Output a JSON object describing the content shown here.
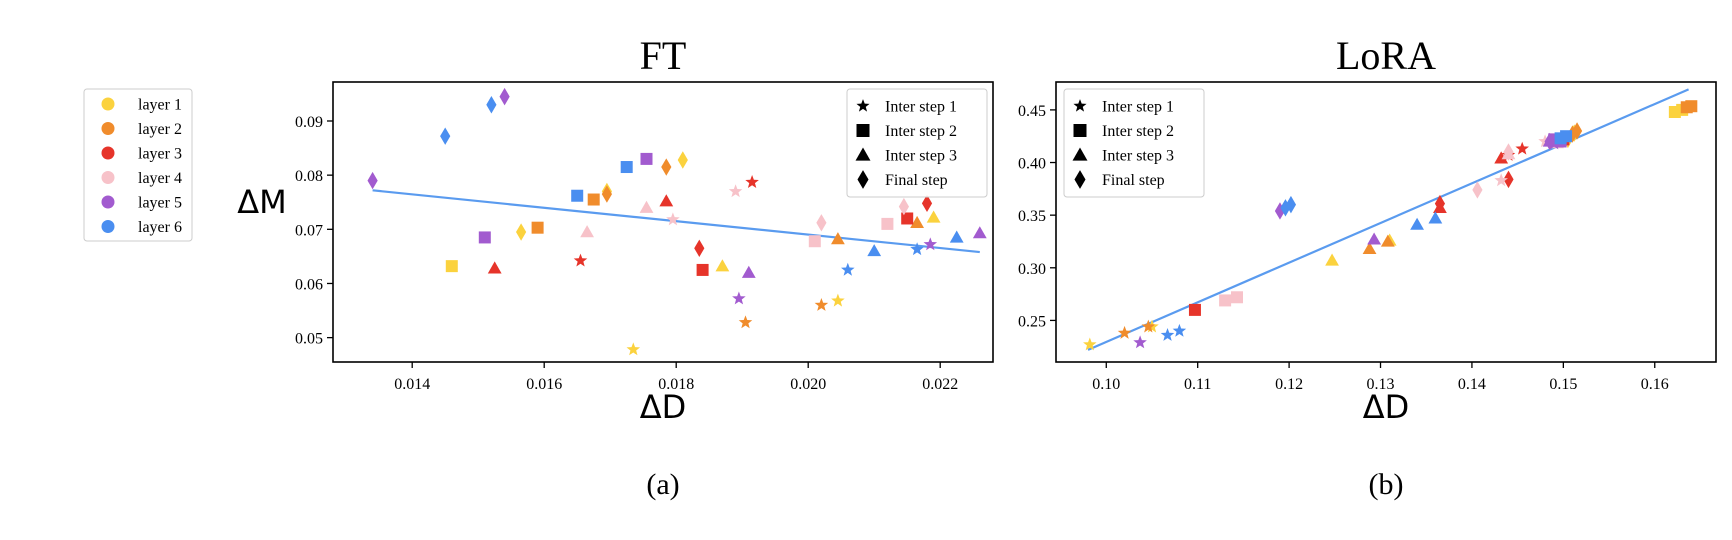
{
  "colors": {
    "layer 1": "#fbd23e",
    "layer 2": "#f08c2c",
    "layer 3": "#e6342a",
    "layer 4": "#f7c2c9",
    "layer 5": "#a25bcf",
    "layer 6": "#4a8ef0",
    "fit_line": "#5a9bef"
  },
  "layer_legend": [
    "layer 1",
    "layer 2",
    "layer 3",
    "layer 4",
    "layer 5",
    "layer 6"
  ],
  "marker_legend": [
    {
      "label": "Inter step 1",
      "marker": "star"
    },
    {
      "label": "Inter step 2",
      "marker": "square"
    },
    {
      "label": "Inter step 3",
      "marker": "triangle"
    },
    {
      "label": "Final step",
      "marker": "diamond"
    }
  ],
  "chart_data": [
    {
      "type": "scatter",
      "panel_label": "(a)",
      "title": "FT",
      "xlabel": "ΔD",
      "ylabel": "ΔM",
      "xlim": [
        0.0128,
        0.0228
      ],
      "ylim": [
        0.0455,
        0.0972
      ],
      "xticks": [
        0.014,
        0.016,
        0.018,
        0.02,
        0.022
      ],
      "xtick_labels": [
        "0.014",
        "0.016",
        "0.018",
        "0.020",
        "0.022"
      ],
      "yticks": [
        0.05,
        0.06,
        0.07,
        0.08,
        0.09
      ],
      "ytick_labels": [
        "0.05",
        "0.06",
        "0.07",
        "0.08",
        "0.09"
      ],
      "legend_position": "top-right",
      "fit_line": [
        [
          0.0134,
          0.0772
        ],
        [
          0.0226,
          0.0658
        ]
      ],
      "points": [
        {
          "x": 0.01735,
          "y": 0.0478,
          "layer": "layer 1",
          "marker": "star"
        },
        {
          "x": 0.02045,
          "y": 0.0568,
          "layer": "layer 1",
          "marker": "star"
        },
        {
          "x": 0.0146,
          "y": 0.0632,
          "layer": "layer 1",
          "marker": "square"
        },
        {
          "x": 0.0187,
          "y": 0.0632,
          "layer": "layer 1",
          "marker": "triangle"
        },
        {
          "x": 0.0219,
          "y": 0.0722,
          "layer": "layer 1",
          "marker": "triangle"
        },
        {
          "x": 0.01565,
          "y": 0.0695,
          "layer": "layer 1",
          "marker": "diamond"
        },
        {
          "x": 0.01695,
          "y": 0.077,
          "layer": "layer 1",
          "marker": "diamond"
        },
        {
          "x": 0.0181,
          "y": 0.0828,
          "layer": "layer 1",
          "marker": "diamond"
        },
        {
          "x": 0.01905,
          "y": 0.0528,
          "layer": "layer 2",
          "marker": "star"
        },
        {
          "x": 0.0202,
          "y": 0.056,
          "layer": "layer 2",
          "marker": "star"
        },
        {
          "x": 0.0159,
          "y": 0.0703,
          "layer": "layer 2",
          "marker": "square"
        },
        {
          "x": 0.01675,
          "y": 0.0755,
          "layer": "layer 2",
          "marker": "square"
        },
        {
          "x": 0.02045,
          "y": 0.0682,
          "layer": "layer 2",
          "marker": "triangle"
        },
        {
          "x": 0.02165,
          "y": 0.0712,
          "layer": "layer 2",
          "marker": "triangle"
        },
        {
          "x": 0.01695,
          "y": 0.0765,
          "layer": "layer 2",
          "marker": "diamond"
        },
        {
          "x": 0.01785,
          "y": 0.0815,
          "layer": "layer 2",
          "marker": "diamond"
        },
        {
          "x": 0.01655,
          "y": 0.0642,
          "layer": "layer 3",
          "marker": "star"
        },
        {
          "x": 0.01915,
          "y": 0.0787,
          "layer": "layer 3",
          "marker": "star"
        },
        {
          "x": 0.0184,
          "y": 0.0625,
          "layer": "layer 3",
          "marker": "square"
        },
        {
          "x": 0.0215,
          "y": 0.072,
          "layer": "layer 3",
          "marker": "square"
        },
        {
          "x": 0.01525,
          "y": 0.0628,
          "layer": "layer 3",
          "marker": "triangle"
        },
        {
          "x": 0.01785,
          "y": 0.0752,
          "layer": "layer 3",
          "marker": "triangle"
        },
        {
          "x": 0.01835,
          "y": 0.0665,
          "layer": "layer 3",
          "marker": "diamond"
        },
        {
          "x": 0.0218,
          "y": 0.0748,
          "layer": "layer 3",
          "marker": "diamond"
        },
        {
          "x": 0.01795,
          "y": 0.0718,
          "layer": "layer 4",
          "marker": "star"
        },
        {
          "x": 0.0189,
          "y": 0.077,
          "layer": "layer 4",
          "marker": "star"
        },
        {
          "x": 0.0201,
          "y": 0.0678,
          "layer": "layer 4",
          "marker": "square"
        },
        {
          "x": 0.0212,
          "y": 0.071,
          "layer": "layer 4",
          "marker": "square"
        },
        {
          "x": 0.01665,
          "y": 0.0695,
          "layer": "layer 4",
          "marker": "triangle"
        },
        {
          "x": 0.01755,
          "y": 0.074,
          "layer": "layer 4",
          "marker": "triangle"
        },
        {
          "x": 0.0202,
          "y": 0.0712,
          "layer": "layer 4",
          "marker": "diamond"
        },
        {
          "x": 0.02145,
          "y": 0.0742,
          "layer": "layer 4",
          "marker": "diamond"
        },
        {
          "x": 0.01895,
          "y": 0.0572,
          "layer": "layer 5",
          "marker": "star"
        },
        {
          "x": 0.02185,
          "y": 0.0672,
          "layer": "layer 5",
          "marker": "star"
        },
        {
          "x": 0.0151,
          "y": 0.0685,
          "layer": "layer 5",
          "marker": "square"
        },
        {
          "x": 0.01755,
          "y": 0.083,
          "layer": "layer 5",
          "marker": "square"
        },
        {
          "x": 0.0191,
          "y": 0.062,
          "layer": "layer 5",
          "marker": "triangle"
        },
        {
          "x": 0.0226,
          "y": 0.0693,
          "layer": "layer 5",
          "marker": "triangle"
        },
        {
          "x": 0.0134,
          "y": 0.079,
          "layer": "layer 5",
          "marker": "diamond"
        },
        {
          "x": 0.0154,
          "y": 0.0945,
          "layer": "layer 5",
          "marker": "diamond"
        },
        {
          "x": 0.0206,
          "y": 0.0625,
          "layer": "layer 6",
          "marker": "star"
        },
        {
          "x": 0.02165,
          "y": 0.0663,
          "layer": "layer 6",
          "marker": "star"
        },
        {
          "x": 0.0165,
          "y": 0.0762,
          "layer": "layer 6",
          "marker": "square"
        },
        {
          "x": 0.01725,
          "y": 0.0815,
          "layer": "layer 6",
          "marker": "square"
        },
        {
          "x": 0.021,
          "y": 0.066,
          "layer": "layer 6",
          "marker": "triangle"
        },
        {
          "x": 0.02225,
          "y": 0.0685,
          "layer": "layer 6",
          "marker": "triangle"
        },
        {
          "x": 0.0145,
          "y": 0.0872,
          "layer": "layer 6",
          "marker": "diamond"
        },
        {
          "x": 0.0152,
          "y": 0.093,
          "layer": "layer 6",
          "marker": "diamond"
        }
      ]
    },
    {
      "type": "scatter",
      "panel_label": "(b)",
      "title": "LoRA",
      "xlabel": "ΔD",
      "ylabel": "",
      "xlim": [
        0.0945,
        0.1667
      ],
      "ylim": [
        0.2105,
        0.4765
      ],
      "xticks": [
        0.1,
        0.11,
        0.12,
        0.13,
        0.14,
        0.15,
        0.16
      ],
      "xtick_labels": [
        "0.10",
        "0.11",
        "0.12",
        "0.13",
        "0.14",
        "0.15",
        "0.16"
      ],
      "yticks": [
        0.25,
        0.3,
        0.35,
        0.4,
        0.45
      ],
      "ytick_labels": [
        "0.25",
        "0.30",
        "0.35",
        "0.40",
        "0.45"
      ],
      "legend_position": "top-left",
      "fit_line": [
        [
          0.098,
          0.222
        ],
        [
          0.1637,
          0.4695
        ]
      ],
      "points": [
        {
          "x": 0.0982,
          "y": 0.227,
          "layer": "layer 1",
          "marker": "star"
        },
        {
          "x": 0.105,
          "y": 0.244,
          "layer": "layer 1",
          "marker": "star"
        },
        {
          "x": 0.1622,
          "y": 0.448,
          "layer": "layer 1",
          "marker": "square"
        },
        {
          "x": 0.163,
          "y": 0.45,
          "layer": "layer 1",
          "marker": "square"
        },
        {
          "x": 0.1247,
          "y": 0.307,
          "layer": "layer 1",
          "marker": "triangle"
        },
        {
          "x": 0.131,
          "y": 0.326,
          "layer": "layer 1",
          "marker": "triangle"
        },
        {
          "x": 0.1505,
          "y": 0.422,
          "layer": "layer 1",
          "marker": "diamond"
        },
        {
          "x": 0.1512,
          "y": 0.428,
          "layer": "layer 1",
          "marker": "diamond"
        },
        {
          "x": 0.102,
          "y": 0.238,
          "layer": "layer 2",
          "marker": "star"
        },
        {
          "x": 0.1046,
          "y": 0.244,
          "layer": "layer 2",
          "marker": "star"
        },
        {
          "x": 0.1635,
          "y": 0.4525,
          "layer": "layer 2",
          "marker": "square"
        },
        {
          "x": 0.164,
          "y": 0.4535,
          "layer": "layer 2",
          "marker": "square"
        },
        {
          "x": 0.1288,
          "y": 0.318,
          "layer": "layer 2",
          "marker": "triangle"
        },
        {
          "x": 0.1308,
          "y": 0.325,
          "layer": "layer 2",
          "marker": "triangle"
        },
        {
          "x": 0.151,
          "y": 0.427,
          "layer": "layer 2",
          "marker": "diamond"
        },
        {
          "x": 0.1515,
          "y": 0.43,
          "layer": "layer 2",
          "marker": "diamond"
        },
        {
          "x": 0.1455,
          "y": 0.413,
          "layer": "layer 3",
          "marker": "star"
        },
        {
          "x": 0.144,
          "y": 0.407,
          "layer": "layer 3",
          "marker": "star"
        },
        {
          "x": 0.1097,
          "y": 0.26,
          "layer": "layer 3",
          "marker": "square"
        },
        {
          "x": 0.15,
          "y": 0.422,
          "layer": "layer 3",
          "marker": "square"
        },
        {
          "x": 0.1432,
          "y": 0.404,
          "layer": "layer 3",
          "marker": "triangle"
        },
        {
          "x": 0.1365,
          "y": 0.357,
          "layer": "layer 3",
          "marker": "triangle"
        },
        {
          "x": 0.1365,
          "y": 0.361,
          "layer": "layer 3",
          "marker": "diamond"
        },
        {
          "x": 0.144,
          "y": 0.384,
          "layer": "layer 3",
          "marker": "diamond"
        },
        {
          "x": 0.148,
          "y": 0.42,
          "layer": "layer 4",
          "marker": "star"
        },
        {
          "x": 0.1432,
          "y": 0.383,
          "layer": "layer 4",
          "marker": "star"
        },
        {
          "x": 0.113,
          "y": 0.269,
          "layer": "layer 4",
          "marker": "square"
        },
        {
          "x": 0.1143,
          "y": 0.272,
          "layer": "layer 4",
          "marker": "square"
        },
        {
          "x": 0.144,
          "y": 0.408,
          "layer": "layer 4",
          "marker": "triangle"
        },
        {
          "x": 0.1493,
          "y": 0.4185,
          "layer": "layer 4",
          "marker": "triangle"
        },
        {
          "x": 0.1406,
          "y": 0.374,
          "layer": "layer 4",
          "marker": "diamond"
        },
        {
          "x": 0.144,
          "y": 0.41,
          "layer": "layer 4",
          "marker": "diamond"
        },
        {
          "x": 0.1037,
          "y": 0.229,
          "layer": "layer 5",
          "marker": "star"
        },
        {
          "x": 0.149,
          "y": 0.418,
          "layer": "layer 5",
          "marker": "star"
        },
        {
          "x": 0.149,
          "y": 0.422,
          "layer": "layer 5",
          "marker": "square"
        },
        {
          "x": 0.1497,
          "y": 0.42,
          "layer": "layer 5",
          "marker": "square"
        },
        {
          "x": 0.1293,
          "y": 0.327,
          "layer": "layer 5",
          "marker": "triangle"
        },
        {
          "x": 0.1485,
          "y": 0.42,
          "layer": "layer 5",
          "marker": "triangle"
        },
        {
          "x": 0.119,
          "y": 0.354,
          "layer": "layer 5",
          "marker": "diamond"
        },
        {
          "x": 0.1485,
          "y": 0.42,
          "layer": "layer 5",
          "marker": "diamond"
        },
        {
          "x": 0.1067,
          "y": 0.236,
          "layer": "layer 6",
          "marker": "star"
        },
        {
          "x": 0.108,
          "y": 0.24,
          "layer": "layer 6",
          "marker": "star"
        },
        {
          "x": 0.1497,
          "y": 0.423,
          "layer": "layer 6",
          "marker": "square"
        },
        {
          "x": 0.1503,
          "y": 0.425,
          "layer": "layer 6",
          "marker": "square"
        },
        {
          "x": 0.134,
          "y": 0.341,
          "layer": "layer 6",
          "marker": "triangle"
        },
        {
          "x": 0.136,
          "y": 0.347,
          "layer": "layer 6",
          "marker": "triangle"
        },
        {
          "x": 0.1196,
          "y": 0.357,
          "layer": "layer 6",
          "marker": "diamond"
        },
        {
          "x": 0.1202,
          "y": 0.36,
          "layer": "layer 6",
          "marker": "diamond"
        }
      ]
    }
  ]
}
